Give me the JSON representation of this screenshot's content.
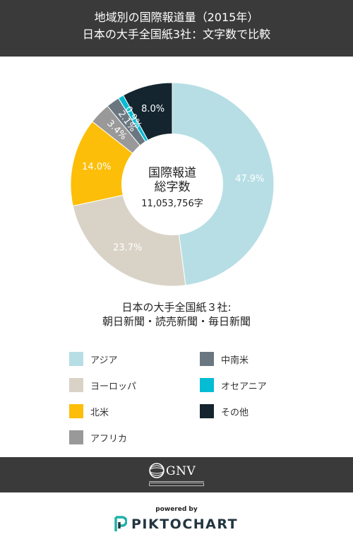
{
  "header": {
    "line1": "地域別の国際報道量（2015年）",
    "line2": "日本の大手全国紙3社：文字数で比較"
  },
  "chart_data": {
    "type": "pie",
    "donut": true,
    "center_text": {
      "line1": "国際報道",
      "line2": "総字数",
      "value": "11,053,756字"
    },
    "slices": [
      {
        "name": "アジア",
        "value": 47.9,
        "label": "47.9%",
        "color": "#b7dee5"
      },
      {
        "name": "ヨーロッパ",
        "value": 23.7,
        "label": "23.7%",
        "color": "#d9d3c7"
      },
      {
        "name": "北米",
        "value": 14.0,
        "label": "14.0%",
        "color": "#fcbe08"
      },
      {
        "name": "アフリカ",
        "value": 3.4,
        "label": "3.4%",
        "color": "#999999"
      },
      {
        "name": "中南米",
        "value": 2.1,
        "label": "2.1%",
        "color": "#6b7780"
      },
      {
        "name": "オセアニア",
        "value": 0.9,
        "label": "0.9%",
        "color": "#06bcd4"
      },
      {
        "name": "その他",
        "value": 8.0,
        "label": "8.0%",
        "color": "#14252f"
      }
    ],
    "legend": "bottom"
  },
  "caption": {
    "line1": "日本の大手全国紙３社:",
    "line2": "朝日新聞・読売新聞・毎日新聞"
  },
  "legend_items": [
    {
      "label": "アジア",
      "color": "#b7dee5"
    },
    {
      "label": "ヨーロッパ",
      "color": "#d9d3c7"
    },
    {
      "label": "北米",
      "color": "#fcbe08"
    },
    {
      "label": "アフリカ",
      "color": "#999999"
    },
    {
      "label": "中南米",
      "color": "#6b7780"
    },
    {
      "label": "オセアニア",
      "color": "#06bcd4"
    },
    {
      "label": "その他",
      "color": "#14252f"
    }
  ],
  "footer": {
    "logo_text": "GNV",
    "powered_by": "powered by",
    "brand": "PIKTOCHART"
  }
}
